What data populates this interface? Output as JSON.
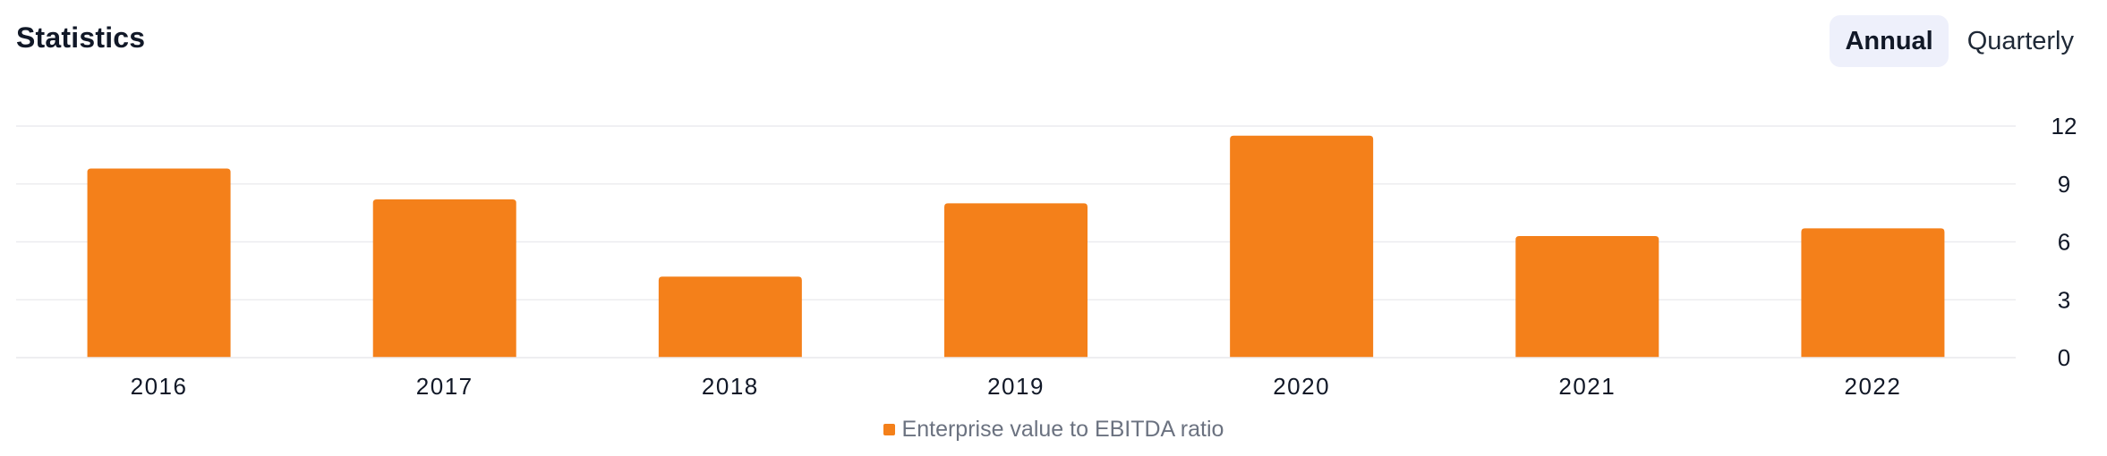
{
  "header": {
    "title": "Statistics",
    "toggle": [
      {
        "label": "Annual",
        "active": true
      },
      {
        "label": "Quarterly",
        "active": false
      }
    ]
  },
  "colors": {
    "bar": "#f4801a",
    "grid": "#ececef",
    "toggle_active_bg": "#eef0fb"
  },
  "chart_data": {
    "type": "bar",
    "categories": [
      "2016",
      "2017",
      "2018",
      "2019",
      "2020",
      "2021",
      "2022"
    ],
    "series": [
      {
        "name": "Enterprise value to EBITDA ratio",
        "values": [
          9.8,
          8.2,
          4.2,
          8.0,
          11.5,
          6.3,
          6.7
        ]
      }
    ],
    "y_ticks": [
      "0",
      "3",
      "6",
      "9",
      "12"
    ],
    "ylim": [
      0,
      12
    ],
    "y_axis_side": "right",
    "grid": true,
    "legend_position": "bottom-center",
    "xlabel": "",
    "ylabel": ""
  }
}
